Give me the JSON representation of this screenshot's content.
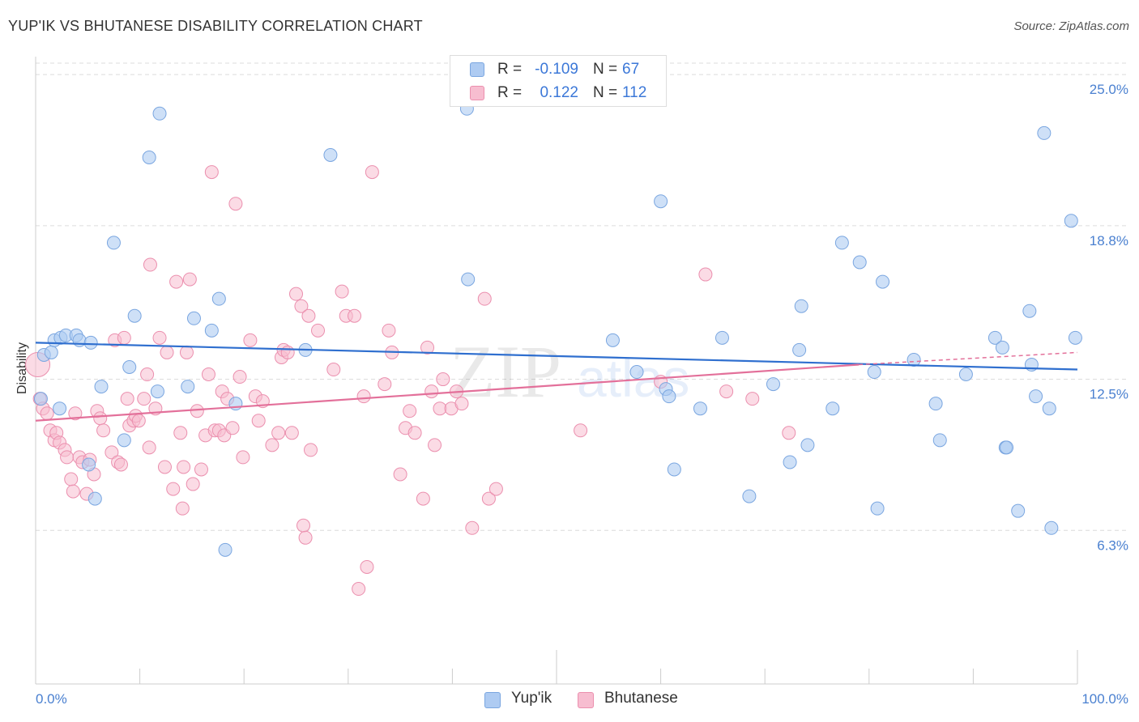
{
  "header": {
    "title": "YUP'IK VS BHUTANESE DISABILITY CORRELATION CHART",
    "source": "Source: ZipAtlas.com"
  },
  "legend_top": {
    "rows": [
      {
        "r_label": "R =",
        "r_value": "-0.109",
        "n_label": "N =",
        "n_value": "67"
      },
      {
        "r_label": "R =",
        "r_value": "0.122",
        "n_label": "N =",
        "n_value": "112"
      }
    ]
  },
  "legend_bottom": {
    "items": [
      {
        "label": "Yup'ik"
      },
      {
        "label": "Bhutanese"
      }
    ]
  },
  "watermark": {
    "text1": "ZIP",
    "text2": "atlas"
  },
  "colors": {
    "blue_fill": "#aecbf2",
    "blue_stroke": "#7aa6e0",
    "blue_line": "#2f6fcf",
    "pink_fill": "#f7bdd0",
    "pink_stroke": "#eb8fae",
    "pink_line": "#e3709a",
    "tick_label": "#4a80d0"
  },
  "chart_data": {
    "type": "scatter",
    "title": "YUP'IK VS BHUTANESE DISABILITY CORRELATION CHART",
    "xlabel": "",
    "ylabel": "Disability",
    "xlim": [
      0,
      100
    ],
    "ylim": [
      0,
      26
    ],
    "x_ticks": [
      "0.0%",
      "100.0%"
    ],
    "y_ticks": [
      {
        "value": 6.3,
        "label": "6.3%"
      },
      {
        "value": 12.5,
        "label": "12.5%"
      },
      {
        "value": 18.8,
        "label": "18.8%"
      },
      {
        "value": 25.0,
        "label": "25.0%"
      }
    ],
    "grid": "horizontal dashed",
    "legend_position": "top-center",
    "series": [
      {
        "name": "Yup'ik",
        "r": -0.109,
        "n": 67,
        "trend": {
          "x0": 0,
          "y0": 14.0,
          "x1": 100,
          "y1": 12.9
        },
        "points": [
          [
            0.5,
            11.7
          ],
          [
            0.8,
            13.5
          ],
          [
            1.5,
            13.6
          ],
          [
            1.8,
            14.1
          ],
          [
            2.3,
            11.3
          ],
          [
            2.4,
            14.2
          ],
          [
            2.9,
            14.3
          ],
          [
            3.9,
            14.3
          ],
          [
            4.2,
            14.1
          ],
          [
            5.1,
            9.0
          ],
          [
            5.3,
            14.0
          ],
          [
            5.7,
            7.6
          ],
          [
            6.3,
            12.2
          ],
          [
            7.5,
            18.1
          ],
          [
            8.5,
            10.0
          ],
          [
            9.0,
            13.0
          ],
          [
            9.5,
            15.1
          ],
          [
            10.9,
            21.6
          ],
          [
            11.7,
            12.0
          ],
          [
            11.9,
            23.4
          ],
          [
            14.6,
            12.2
          ],
          [
            15.2,
            15.0
          ],
          [
            16.9,
            14.5
          ],
          [
            17.6,
            15.8
          ],
          [
            18.2,
            5.5
          ],
          [
            19.2,
            11.5
          ],
          [
            25.9,
            13.7
          ],
          [
            28.3,
            21.7
          ],
          [
            41.4,
            23.6
          ],
          [
            41.5,
            16.6
          ],
          [
            55.4,
            14.1
          ],
          [
            57.7,
            12.8
          ],
          [
            60.0,
            19.8
          ],
          [
            60.5,
            12.1
          ],
          [
            60.8,
            11.8
          ],
          [
            61.3,
            8.8
          ],
          [
            63.8,
            11.3
          ],
          [
            65.9,
            14.2
          ],
          [
            68.5,
            7.7
          ],
          [
            70.8,
            12.3
          ],
          [
            72.4,
            9.1
          ],
          [
            73.3,
            13.7
          ],
          [
            73.5,
            15.5
          ],
          [
            74.1,
            9.8
          ],
          [
            76.5,
            11.3
          ],
          [
            77.4,
            18.1
          ],
          [
            79.1,
            17.3
          ],
          [
            80.5,
            12.8
          ],
          [
            80.8,
            7.2
          ],
          [
            81.3,
            16.5
          ],
          [
            84.3,
            13.3
          ],
          [
            86.4,
            11.5
          ],
          [
            86.8,
            10.0
          ],
          [
            89.3,
            12.7
          ],
          [
            92.1,
            14.2
          ],
          [
            92.8,
            13.8
          ],
          [
            93.1,
            9.7
          ],
          [
            93.2,
            9.7
          ],
          [
            94.3,
            7.1
          ],
          [
            95.4,
            15.3
          ],
          [
            95.6,
            13.1
          ],
          [
            96.0,
            11.8
          ],
          [
            96.8,
            22.6
          ],
          [
            97.3,
            11.3
          ],
          [
            97.5,
            6.4
          ],
          [
            99.4,
            19.0
          ],
          [
            99.8,
            14.2
          ]
        ]
      },
      {
        "name": "Bhutanese",
        "r": 0.122,
        "n": 112,
        "trend": {
          "x0": 0,
          "y0": 10.8,
          "x1": 79,
          "y1": 13.1
        },
        "trend_dashed": {
          "x0": 79,
          "y0": 13.1,
          "x1": 100,
          "y1": 13.6
        },
        "points": [
          [
            0.2,
            13.1
          ],
          [
            0.4,
            11.7
          ],
          [
            0.7,
            11.3
          ],
          [
            1.1,
            11.1
          ],
          [
            1.4,
            10.4
          ],
          [
            1.8,
            10.0
          ],
          [
            2.0,
            10.3
          ],
          [
            2.3,
            9.9
          ],
          [
            2.8,
            9.6
          ],
          [
            3.0,
            9.3
          ],
          [
            3.4,
            8.4
          ],
          [
            3.6,
            7.9
          ],
          [
            3.8,
            11.1
          ],
          [
            4.2,
            9.3
          ],
          [
            4.5,
            9.1
          ],
          [
            4.9,
            7.8
          ],
          [
            5.2,
            9.2
          ],
          [
            5.6,
            8.6
          ],
          [
            5.9,
            11.2
          ],
          [
            6.2,
            10.9
          ],
          [
            6.5,
            10.4
          ],
          [
            7.3,
            9.5
          ],
          [
            7.6,
            14.1
          ],
          [
            7.9,
            9.1
          ],
          [
            8.2,
            9.0
          ],
          [
            8.5,
            14.2
          ],
          [
            8.8,
            11.7
          ],
          [
            9.0,
            10.6
          ],
          [
            9.4,
            10.8
          ],
          [
            9.6,
            11.0
          ],
          [
            9.9,
            10.8
          ],
          [
            10.4,
            11.7
          ],
          [
            10.7,
            12.7
          ],
          [
            10.9,
            9.7
          ],
          [
            11.0,
            17.2
          ],
          [
            11.5,
            11.3
          ],
          [
            11.9,
            14.2
          ],
          [
            12.4,
            8.9
          ],
          [
            12.6,
            13.6
          ],
          [
            13.2,
            8.0
          ],
          [
            13.5,
            16.5
          ],
          [
            13.9,
            10.3
          ],
          [
            14.1,
            7.2
          ],
          [
            14.2,
            8.9
          ],
          [
            14.5,
            13.6
          ],
          [
            14.8,
            16.6
          ],
          [
            15.1,
            8.2
          ],
          [
            15.5,
            11.2
          ],
          [
            15.9,
            8.8
          ],
          [
            16.3,
            10.2
          ],
          [
            16.6,
            12.7
          ],
          [
            16.9,
            21.0
          ],
          [
            17.2,
            10.4
          ],
          [
            17.6,
            10.4
          ],
          [
            17.9,
            12.0
          ],
          [
            18.1,
            10.2
          ],
          [
            18.4,
            11.7
          ],
          [
            18.9,
            10.5
          ],
          [
            19.2,
            19.7
          ],
          [
            19.6,
            12.6
          ],
          [
            19.9,
            9.3
          ],
          [
            20.6,
            14.1
          ],
          [
            21.1,
            11.8
          ],
          [
            21.4,
            10.8
          ],
          [
            21.8,
            11.6
          ],
          [
            22.7,
            9.8
          ],
          [
            23.3,
            10.3
          ],
          [
            23.6,
            13.4
          ],
          [
            23.8,
            13.7
          ],
          [
            24.2,
            13.6
          ],
          [
            24.6,
            10.3
          ],
          [
            25.0,
            16.0
          ],
          [
            25.5,
            15.5
          ],
          [
            25.7,
            6.5
          ],
          [
            25.9,
            6.0
          ],
          [
            26.2,
            15.1
          ],
          [
            26.4,
            9.6
          ],
          [
            27.1,
            14.5
          ],
          [
            28.6,
            12.9
          ],
          [
            29.4,
            16.1
          ],
          [
            29.8,
            15.1
          ],
          [
            30.6,
            15.1
          ],
          [
            31.0,
            3.9
          ],
          [
            31.5,
            11.8
          ],
          [
            31.8,
            4.8
          ],
          [
            32.3,
            21.0
          ],
          [
            33.5,
            12.3
          ],
          [
            33.9,
            14.5
          ],
          [
            34.2,
            13.6
          ],
          [
            35.0,
            8.6
          ],
          [
            35.5,
            10.5
          ],
          [
            35.9,
            11.2
          ],
          [
            36.4,
            10.3
          ],
          [
            37.2,
            7.6
          ],
          [
            37.6,
            13.8
          ],
          [
            38.0,
            12.0
          ],
          [
            38.3,
            9.8
          ],
          [
            38.8,
            11.3
          ],
          [
            39.1,
            12.5
          ],
          [
            39.9,
            11.3
          ],
          [
            40.4,
            12.0
          ],
          [
            40.9,
            11.5
          ],
          [
            41.9,
            6.4
          ],
          [
            43.1,
            15.8
          ],
          [
            43.5,
            7.6
          ],
          [
            44.2,
            8.0
          ],
          [
            52.3,
            10.4
          ],
          [
            60.0,
            12.4
          ],
          [
            64.3,
            16.8
          ],
          [
            66.3,
            12.0
          ],
          [
            68.8,
            11.7
          ],
          [
            72.3,
            10.3
          ]
        ]
      }
    ]
  }
}
